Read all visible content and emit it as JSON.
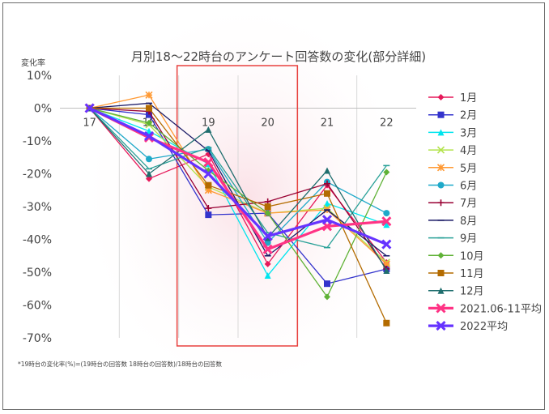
{
  "chart_data": {
    "type": "line",
    "title": "月別18～22時台のアンケート回答数の変化(部分詳細)",
    "ylabel": "変化率",
    "categories": [
      "17",
      "18",
      "19",
      "20",
      "21",
      "22"
    ],
    "yticks": [
      "10%",
      "0%",
      "-10%",
      "-20%",
      "-30%",
      "-40%",
      "-50%",
      "-60%",
      "-70%"
    ],
    "ylim": [
      -70,
      10
    ],
    "footnote": "*19時台の変化率(%)=(19時台の回答数 18時台の回答数)/18時台の回答数",
    "highlight_category": "19-20",
    "highlight_color": "#e8413e",
    "series": [
      {
        "name": "1月",
        "color": "#e6195a",
        "marker": "diamond",
        "values": [
          0,
          -21.5,
          -14,
          -47.5,
          -23.5,
          -47
        ]
      },
      {
        "name": "2月",
        "color": "#3333cc",
        "marker": "square",
        "values": [
          0,
          -2,
          -32.5,
          -32,
          -53.5,
          -49
        ]
      },
      {
        "name": "3月",
        "color": "#00e5ee",
        "marker": "triangle",
        "values": [
          0,
          -7,
          -17,
          -51,
          -29,
          -35.5
        ]
      },
      {
        "name": "4月",
        "color": "#b3e34d",
        "marker": "x",
        "values": [
          0,
          -5,
          -24,
          -32,
          -30.5,
          -47
        ]
      },
      {
        "name": "5月",
        "color": "#ff9933",
        "marker": "star",
        "values": [
          0,
          4,
          -25,
          -32,
          -31,
          -47.5
        ]
      },
      {
        "name": "6月",
        "color": "#1fa9c9",
        "marker": "circle",
        "values": [
          0,
          -15.5,
          -12.5,
          -41,
          -22.5,
          -32
        ]
      },
      {
        "name": "7月",
        "color": "#990033",
        "marker": "plus",
        "values": [
          0,
          -1,
          -30.5,
          -28.5,
          -23,
          -49
        ]
      },
      {
        "name": "8月",
        "color": "#1a1a66",
        "marker": "dash",
        "values": [
          0,
          1.5,
          -13,
          -45,
          -31,
          -45
        ]
      },
      {
        "name": "9月",
        "color": "#2aa198",
        "marker": "dash",
        "values": [
          0,
          -18.5,
          -12,
          -38,
          -42.5,
          -17.5
        ]
      },
      {
        "name": "10月",
        "color": "#5fb236",
        "marker": "diamond",
        "values": [
          0,
          -4.5,
          -19,
          -32,
          -57.5,
          -19.5
        ]
      },
      {
        "name": "11月",
        "color": "#b36b00",
        "marker": "square",
        "values": [
          0,
          0,
          -23.5,
          -30,
          -26,
          -65.5
        ]
      },
      {
        "name": "12月",
        "color": "#1f6e6e",
        "marker": "triangle",
        "values": [
          0,
          -20,
          -6.5,
          -39.5,
          -19,
          -49.5
        ]
      },
      {
        "name": "2021.06-11平均",
        "color": "#ff3385",
        "marker": "x",
        "values": [
          0,
          -9,
          -16.5,
          -43,
          -36,
          -34.5
        ]
      },
      {
        "name": "2022平均",
        "color": "#6633ff",
        "marker": "x",
        "values": [
          0,
          -8.5,
          -20,
          -39,
          -34,
          -41.5
        ]
      }
    ]
  }
}
